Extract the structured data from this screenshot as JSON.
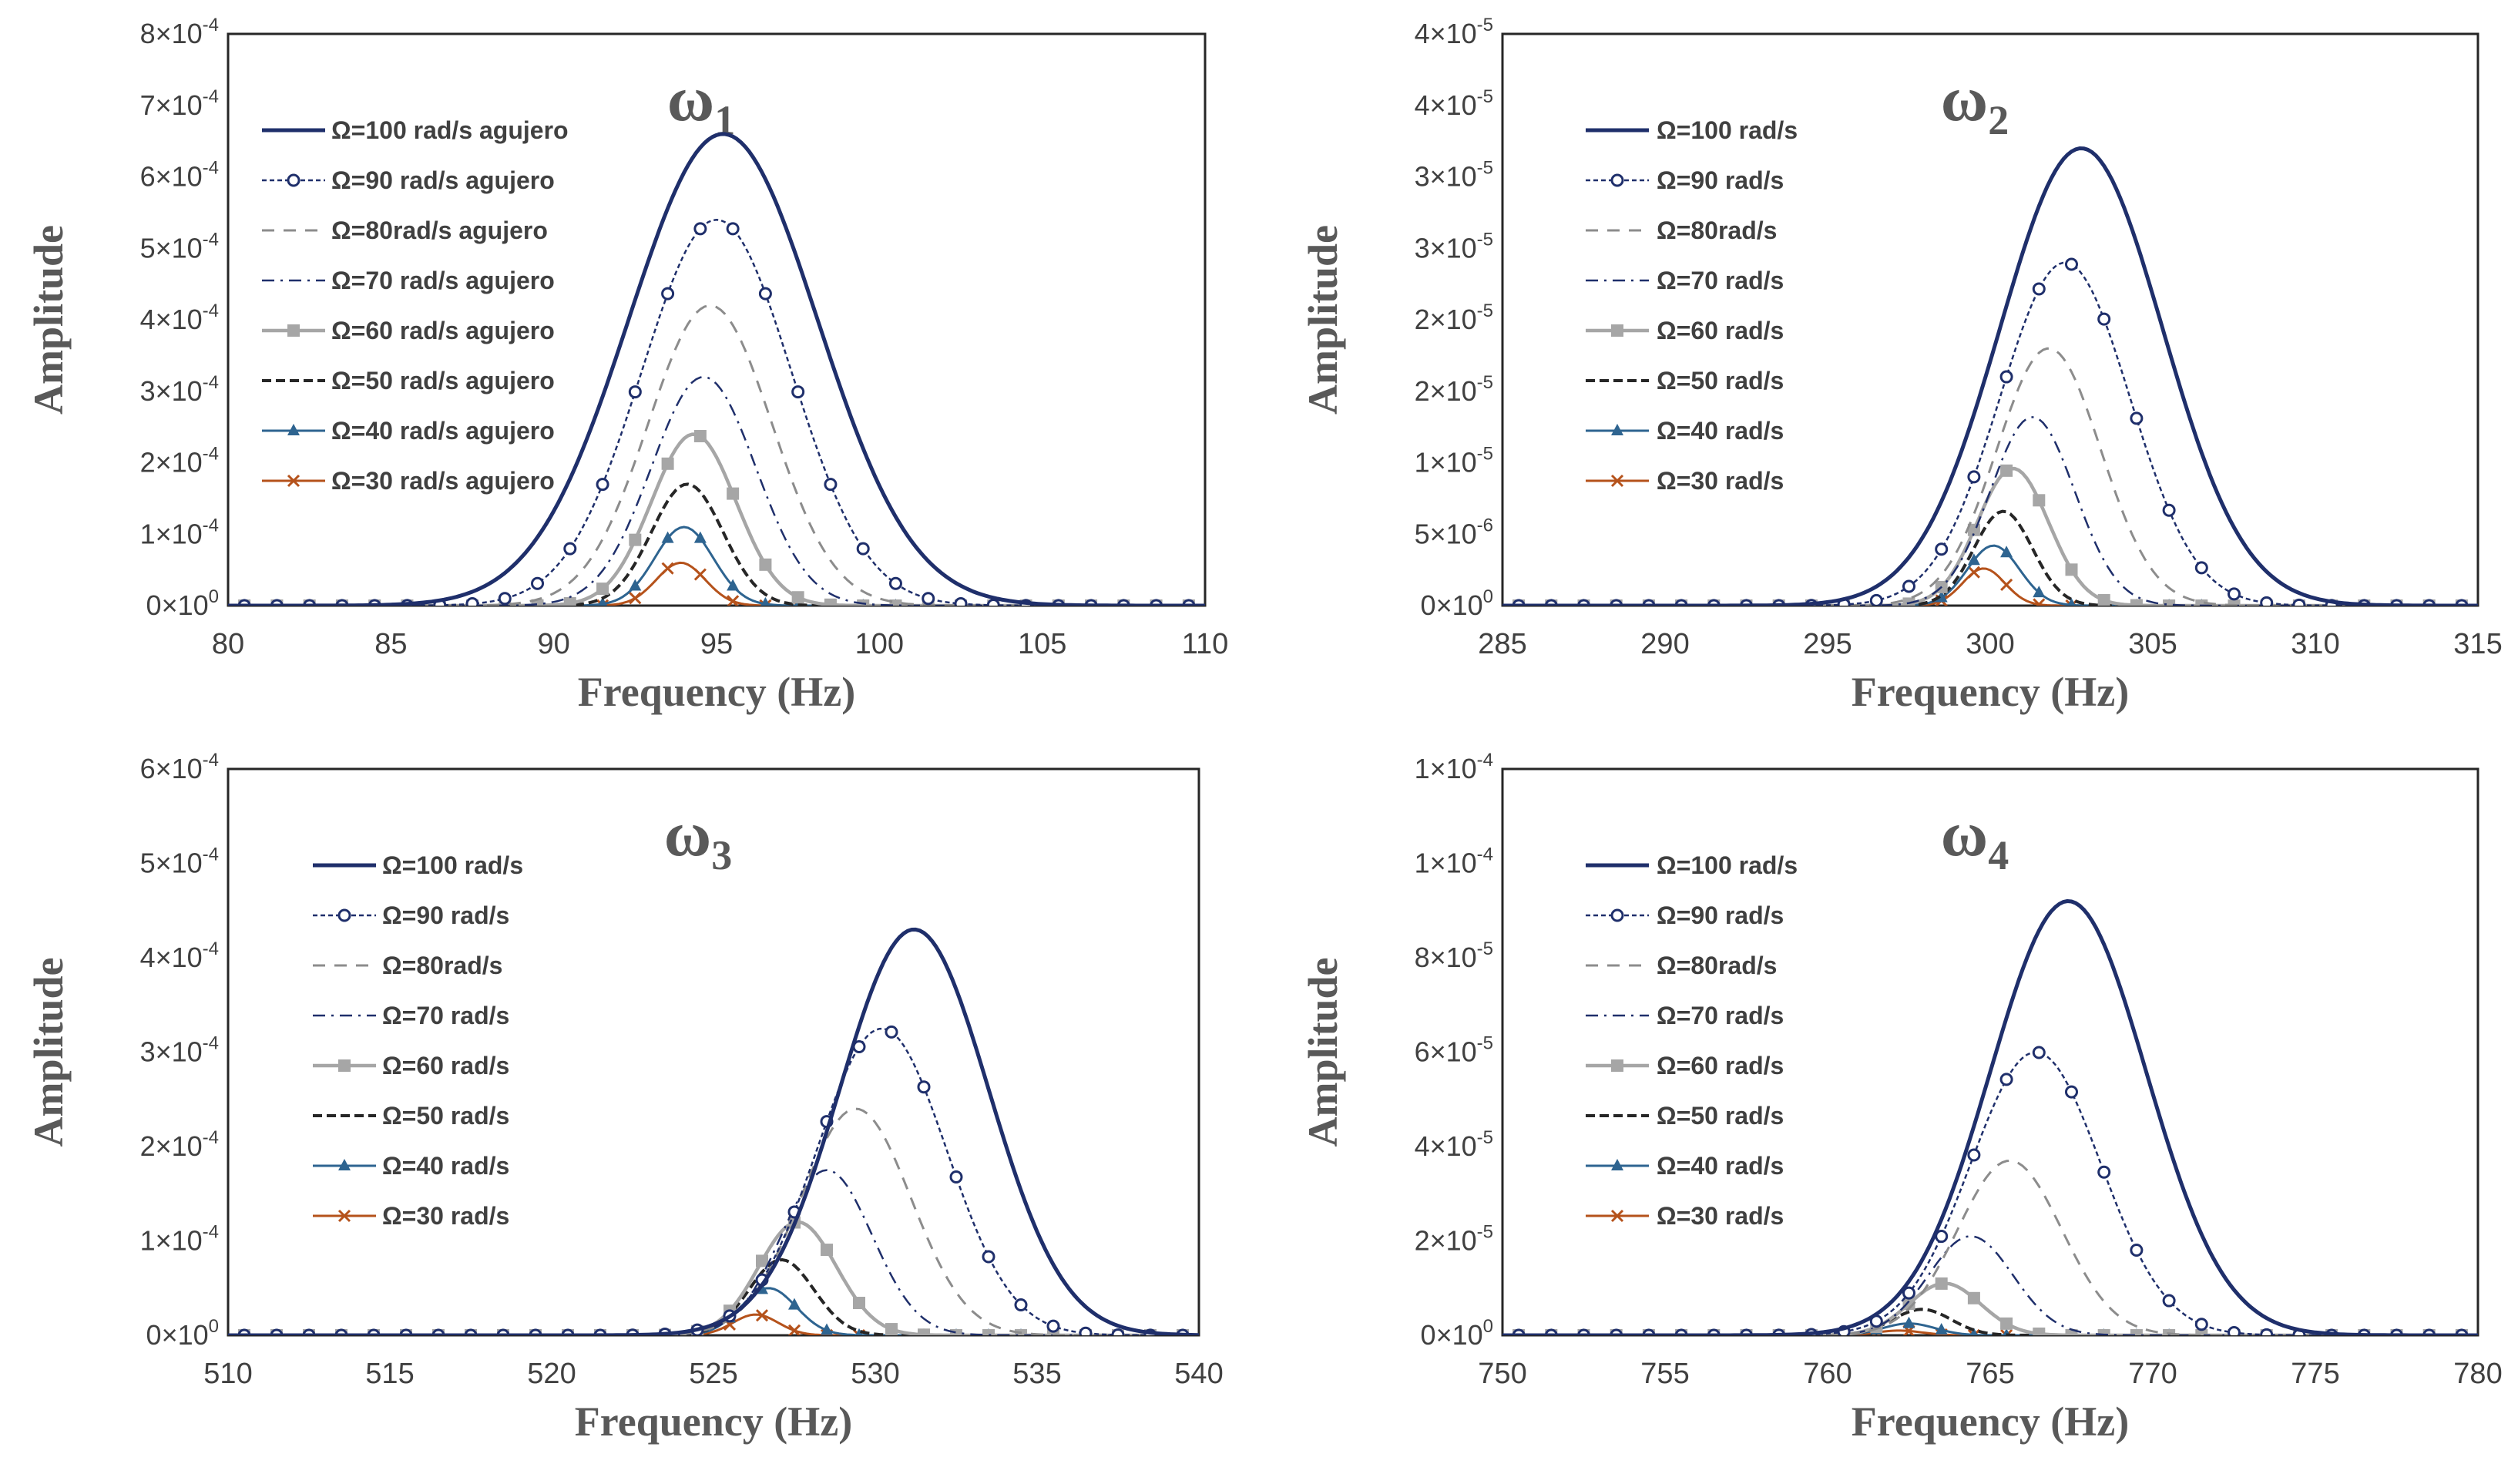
{
  "chart_data": [
    {
      "type": "line",
      "title": "ω",
      "title_subscript": "1",
      "xlabel": "Frequency (Hz)",
      "ylabel": "Amplitude",
      "xlim": [
        80,
        110
      ],
      "ylim": [
        0,
        0.0008
      ],
      "xticks": [
        "80",
        "85",
        "90",
        "95",
        "100",
        "105",
        "110"
      ],
      "yticks": [
        {
          "m": "0",
          "e": "0"
        },
        {
          "m": "1",
          "e": "-4"
        },
        {
          "m": "2",
          "e": "-4"
        },
        {
          "m": "3",
          "e": "-4"
        },
        {
          "m": "4",
          "e": "-4"
        },
        {
          "m": "5",
          "e": "-4"
        },
        {
          "m": "6",
          "e": "-4"
        },
        {
          "m": "7",
          "e": "-4"
        },
        {
          "m": "8",
          "e": "-4"
        }
      ],
      "grid": false,
      "legend_position": "top-left",
      "series": [
        {
          "name": "Ω=100 rad/s agujero",
          "peak_x": 95.2,
          "peak_y": 0.00066,
          "width": 2.9,
          "marker": "none",
          "dash": "solid",
          "color": "#1f2f6b",
          "stroke": 5
        },
        {
          "name": "Ω=90 rad/s agujero",
          "peak_x": 95.0,
          "peak_y": 0.00054,
          "width": 2.3,
          "marker": "circle",
          "dash": "6,4",
          "color": "#1f2f6b",
          "stroke": 2.5
        },
        {
          "name": "Ω=80rad/s agujero",
          "peak_x": 94.8,
          "peak_y": 0.00042,
          "width": 1.9,
          "marker": "none",
          "dash": "16,12",
          "color": "#8c8c8c",
          "stroke": 3
        },
        {
          "name": "Ω=70 rad/s agujero",
          "peak_x": 94.6,
          "peak_y": 0.00032,
          "width": 1.6,
          "marker": "none",
          "dash": "16,8,3,8",
          "color": "#1f2f6b",
          "stroke": 2.5
        },
        {
          "name": "Ω=60 rad/s agujero",
          "peak_x": 94.3,
          "peak_y": 0.00024,
          "width": 1.3,
          "marker": "square",
          "dash": "solid",
          "color": "#a6a6a6",
          "stroke": 4.5
        },
        {
          "name": "Ω=50 rad/s agujero",
          "peak_x": 94.1,
          "peak_y": 0.00017,
          "width": 1.1,
          "marker": "none",
          "dash": "12,6",
          "color": "#262626",
          "stroke": 4
        },
        {
          "name": "Ω=40 rad/s agujero",
          "peak_x": 94.0,
          "peak_y": 0.00011,
          "width": 0.9,
          "marker": "triangle",
          "dash": "solid",
          "color": "#2e6490",
          "stroke": 3
        },
        {
          "name": "Ω=30 rad/s agujero",
          "peak_x": 93.9,
          "peak_y": 6e-05,
          "width": 0.75,
          "marker": "x",
          "dash": "solid",
          "color": "#b5521b",
          "stroke": 3
        }
      ]
    },
    {
      "type": "line",
      "title": "ω",
      "title_subscript": "2",
      "xlabel": "Frequency (Hz)",
      "ylabel": "Amplitude",
      "xlim": [
        285,
        315
      ],
      "ylim": [
        0,
        4e-05
      ],
      "xticks": [
        "285",
        "290",
        "295",
        "300",
        "305",
        "310",
        "315"
      ],
      "yticks": [
        {
          "m": "0",
          "e": "0"
        },
        {
          "m": "5",
          "e": "-6"
        },
        {
          "m": "1",
          "e": "-5"
        },
        {
          "m": "2",
          "e": "-5"
        },
        {
          "m": "2",
          "e": "-5"
        },
        {
          "m": "3",
          "e": "-5"
        },
        {
          "m": "3",
          "e": "-5"
        },
        {
          "m": "4",
          "e": "-5"
        },
        {
          "m": "4",
          "e": "-5"
        }
      ],
      "grid": false,
      "legend_position": "top-left",
      "series": [
        {
          "name": "Ω=100 rad/s",
          "peak_x": 302.8,
          "peak_y": 3.2e-05,
          "width": 2.5,
          "marker": "none",
          "dash": "solid",
          "color": "#1f2f6b",
          "stroke": 5
        },
        {
          "name": "Ω=90 rad/s",
          "peak_x": 302.3,
          "peak_y": 2.4e-05,
          "width": 2.0,
          "marker": "circle",
          "dash": "6,4",
          "color": "#1f2f6b",
          "stroke": 2.5
        },
        {
          "name": "Ω=80rad/s",
          "peak_x": 301.8,
          "peak_y": 1.8e-05,
          "width": 1.6,
          "marker": "none",
          "dash": "16,12",
          "color": "#8c8c8c",
          "stroke": 3
        },
        {
          "name": "Ω=70 rad/s",
          "peak_x": 301.3,
          "peak_y": 1.32e-05,
          "width": 1.3,
          "marker": "none",
          "dash": "16,8,3,8",
          "color": "#1f2f6b",
          "stroke": 2.5
        },
        {
          "name": "Ω=60 rad/s",
          "peak_x": 300.7,
          "peak_y": 9.6e-06,
          "width": 1.1,
          "marker": "square",
          "dash": "solid",
          "color": "#a6a6a6",
          "stroke": 4.5
        },
        {
          "name": "Ω=50 rad/s",
          "peak_x": 300.4,
          "peak_y": 6.6e-06,
          "width": 0.9,
          "marker": "none",
          "dash": "12,6",
          "color": "#262626",
          "stroke": 4
        },
        {
          "name": "Ω=40 rad/s",
          "peak_x": 300.1,
          "peak_y": 4.2e-06,
          "width": 0.8,
          "marker": "triangle",
          "dash": "solid",
          "color": "#2e6490",
          "stroke": 3
        },
        {
          "name": "Ω=30 rad/s",
          "peak_x": 299.8,
          "peak_y": 2.6e-06,
          "width": 0.65,
          "marker": "x",
          "dash": "solid",
          "color": "#b5521b",
          "stroke": 3
        }
      ]
    },
    {
      "type": "line",
      "title": "ω",
      "title_subscript": "3",
      "xlabel": "Frequency (Hz)",
      "ylabel": "Amplitude",
      "xlim": [
        510,
        540
      ],
      "ylim": [
        0,
        0.0006
      ],
      "xticks": [
        "510",
        "515",
        "520",
        "525",
        "530",
        "535",
        "540"
      ],
      "yticks": [
        {
          "m": "0",
          "e": "0"
        },
        {
          "m": "1",
          "e": "-4"
        },
        {
          "m": "2",
          "e": "-4"
        },
        {
          "m": "3",
          "e": "-4"
        },
        {
          "m": "4",
          "e": "-4"
        },
        {
          "m": "5",
          "e": "-4"
        },
        {
          "m": "6",
          "e": "-4"
        }
      ],
      "grid": false,
      "legend_position": "top-left",
      "series": [
        {
          "name": "Ω=100 rad/s",
          "peak_x": 531.2,
          "peak_y": 0.00043,
          "width": 2.3,
          "marker": "none",
          "dash": "solid",
          "color": "#1f2f6b",
          "stroke": 5
        },
        {
          "name": "Ω=90 rad/s",
          "peak_x": 530.2,
          "peak_y": 0.000325,
          "width": 2.0,
          "marker": "circle",
          "dash": "6,4",
          "color": "#1f2f6b",
          "stroke": 2.5
        },
        {
          "name": "Ω=80rad/s",
          "peak_x": 529.4,
          "peak_y": 0.00024,
          "width": 1.7,
          "marker": "none",
          "dash": "16,12",
          "color": "#8c8c8c",
          "stroke": 3
        },
        {
          "name": "Ω=70 rad/s",
          "peak_x": 528.5,
          "peak_y": 0.000175,
          "width": 1.4,
          "marker": "none",
          "dash": "16,8,3,8",
          "color": "#1f2f6b",
          "stroke": 2.5
        },
        {
          "name": "Ω=60 rad/s",
          "peak_x": 527.6,
          "peak_y": 0.00012,
          "width": 1.2,
          "marker": "square",
          "dash": "solid",
          "color": "#a6a6a6",
          "stroke": 4.5
        },
        {
          "name": "Ω=50 rad/s",
          "peak_x": 527.1,
          "peak_y": 8e-05,
          "width": 1.0,
          "marker": "none",
          "dash": "12,6",
          "color": "#262626",
          "stroke": 4
        },
        {
          "name": "Ω=40 rad/s",
          "peak_x": 526.7,
          "peak_y": 5e-05,
          "width": 0.85,
          "marker": "triangle",
          "dash": "solid",
          "color": "#2e6490",
          "stroke": 3
        },
        {
          "name": "Ω=30 rad/s",
          "peak_x": 526.3,
          "peak_y": 2.2e-05,
          "width": 0.7,
          "marker": "x",
          "dash": "solid",
          "color": "#b5521b",
          "stroke": 3
        }
      ]
    },
    {
      "type": "line",
      "title": "ω",
      "title_subscript": "4",
      "xlabel": "Frequency (Hz)",
      "ylabel": "Amplitude",
      "xlim": [
        750,
        780
      ],
      "ylim": [
        0,
        0.00012
      ],
      "xticks": [
        "750",
        "755",
        "760",
        "765",
        "770",
        "775",
        "780"
      ],
      "yticks": [
        {
          "m": "0",
          "e": "0"
        },
        {
          "m": "2",
          "e": "-5"
        },
        {
          "m": "4",
          "e": "-5"
        },
        {
          "m": "6",
          "e": "-5"
        },
        {
          "m": "8",
          "e": "-5"
        },
        {
          "m": "1",
          "e": "-4"
        },
        {
          "m": "1",
          "e": "-4"
        }
      ],
      "grid": false,
      "legend_position": "top-left",
      "series": [
        {
          "name": "Ω=100 rad/s",
          "peak_x": 767.4,
          "peak_y": 9.2e-05,
          "width": 2.4,
          "marker": "none",
          "dash": "solid",
          "color": "#1f2f6b",
          "stroke": 5
        },
        {
          "name": "Ω=90 rad/s",
          "peak_x": 766.4,
          "peak_y": 6e-05,
          "width": 2.0,
          "marker": "circle",
          "dash": "6,4",
          "color": "#1f2f6b",
          "stroke": 2.5
        },
        {
          "name": "Ω=80rad/s",
          "peak_x": 765.6,
          "peak_y": 3.7e-05,
          "width": 1.6,
          "marker": "none",
          "dash": "16,12",
          "color": "#8c8c8c",
          "stroke": 3
        },
        {
          "name": "Ω=70 rad/s",
          "peak_x": 764.4,
          "peak_y": 2.1e-05,
          "width": 1.3,
          "marker": "none",
          "dash": "16,8,3,8",
          "color": "#1f2f6b",
          "stroke": 2.5
        },
        {
          "name": "Ω=60 rad/s",
          "peak_x": 763.6,
          "peak_y": 1.1e-05,
          "width": 1.1,
          "marker": "square",
          "dash": "solid",
          "color": "#a6a6a6",
          "stroke": 4.5
        },
        {
          "name": "Ω=50 rad/s",
          "peak_x": 762.9,
          "peak_y": 5.5e-06,
          "width": 0.9,
          "marker": "none",
          "dash": "12,6",
          "color": "#262626",
          "stroke": 4
        },
        {
          "name": "Ω=40 rad/s",
          "peak_x": 762.5,
          "peak_y": 2.5e-06,
          "width": 0.8,
          "marker": "triangle",
          "dash": "solid",
          "color": "#2e6490",
          "stroke": 3
        },
        {
          "name": "Ω=30 rad/s",
          "peak_x": 762.2,
          "peak_y": 1e-06,
          "width": 0.7,
          "marker": "x",
          "dash": "solid",
          "color": "#b5521b",
          "stroke": 3
        }
      ]
    }
  ]
}
